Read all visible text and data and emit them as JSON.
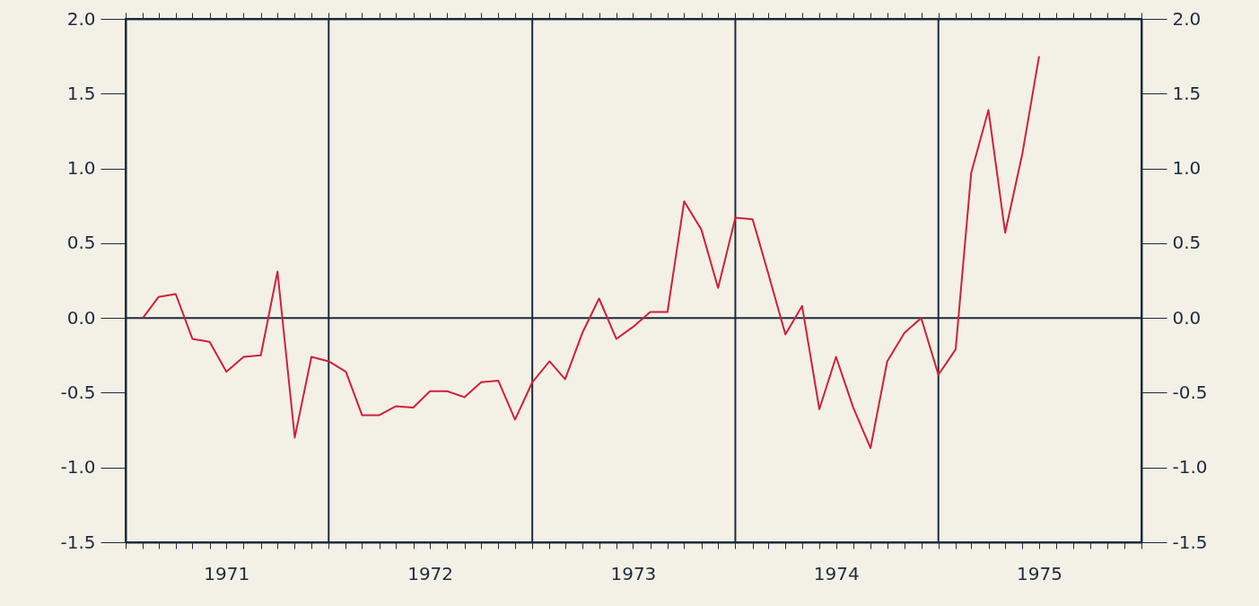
{
  "chart_data": {
    "type": "line",
    "x": [
      "1971-02",
      "1971-03",
      "1971-04",
      "1971-05",
      "1971-06",
      "1971-07",
      "1971-08",
      "1971-09",
      "1971-10",
      "1971-11",
      "1971-12",
      "1972-01",
      "1972-02",
      "1972-03",
      "1972-04",
      "1972-05",
      "1972-06",
      "1972-07",
      "1972-08",
      "1972-09",
      "1972-10",
      "1972-11",
      "1972-12",
      "1973-01",
      "1973-02",
      "1973-03",
      "1973-04",
      "1973-05",
      "1973-06",
      "1973-07",
      "1973-08",
      "1973-09",
      "1973-10",
      "1973-11",
      "1973-12",
      "1974-01",
      "1974-02",
      "1974-03",
      "1974-04",
      "1974-05",
      "1974-06",
      "1974-07",
      "1974-08",
      "1974-09",
      "1974-10",
      "1974-11",
      "1974-12",
      "1975-01",
      "1975-02",
      "1975-03",
      "1975-04",
      "1975-05",
      "1975-06",
      "1975-07"
    ],
    "series": [
      {
        "color": "#d0203a",
        "values": [
          0.0,
          0.14,
          0.16,
          -0.14,
          -0.16,
          -0.36,
          -0.26,
          -0.25,
          0.31,
          -0.8,
          -0.26,
          -0.29,
          -0.36,
          -0.65,
          -0.65,
          -0.59,
          -0.6,
          -0.49,
          -0.49,
          -0.53,
          -0.43,
          -0.42,
          -0.68,
          -0.43,
          -0.29,
          -0.41,
          -0.1,
          0.13,
          -0.14,
          -0.06,
          0.04,
          0.04,
          0.78,
          0.59,
          0.2,
          0.67,
          0.66,
          0.3,
          -0.11,
          0.08,
          -0.61,
          -0.26,
          -0.6,
          -0.87,
          -0.29,
          -0.1,
          0.0,
          -0.38,
          -0.21,
          0.97,
          1.39,
          0.57,
          1.1,
          1.75
        ]
      }
    ],
    "xlim": [
      "1971-01",
      "1976-01"
    ],
    "xticks": [
      {
        "value": "1971-01",
        "label": null
      },
      {
        "value": "1971-02",
        "label": null
      },
      {
        "value": "1971-03",
        "label": null
      },
      {
        "value": "1971-04",
        "label": null
      },
      {
        "value": "1971-05",
        "label": null
      },
      {
        "value": "1971-06",
        "label": null
      },
      {
        "value": "1971-07",
        "label": "1971"
      },
      {
        "value": "1971-08",
        "label": null
      },
      {
        "value": "1971-09",
        "label": null
      },
      {
        "value": "1971-10",
        "label": null
      },
      {
        "value": "1971-11",
        "label": null
      },
      {
        "value": "1971-12",
        "label": null
      },
      {
        "value": "1972-01",
        "label": null
      },
      {
        "value": "1972-02",
        "label": null
      },
      {
        "value": "1972-03",
        "label": null
      },
      {
        "value": "1972-04",
        "label": null
      },
      {
        "value": "1972-05",
        "label": null
      },
      {
        "value": "1972-06",
        "label": null
      },
      {
        "value": "1972-07",
        "label": "1972"
      },
      {
        "value": "1972-08",
        "label": null
      },
      {
        "value": "1972-09",
        "label": null
      },
      {
        "value": "1972-10",
        "label": null
      },
      {
        "value": "1972-11",
        "label": null
      },
      {
        "value": "1972-12",
        "label": null
      },
      {
        "value": "1973-01",
        "label": null
      },
      {
        "value": "1973-02",
        "label": null
      },
      {
        "value": "1973-03",
        "label": null
      },
      {
        "value": "1973-04",
        "label": null
      },
      {
        "value": "1973-05",
        "label": null
      },
      {
        "value": "1973-06",
        "label": null
      },
      {
        "value": "1973-07",
        "label": "1973"
      },
      {
        "value": "1973-08",
        "label": null
      },
      {
        "value": "1973-09",
        "label": null
      },
      {
        "value": "1973-10",
        "label": null
      },
      {
        "value": "1973-11",
        "label": null
      },
      {
        "value": "1973-12",
        "label": null
      },
      {
        "value": "1974-01",
        "label": null
      },
      {
        "value": "1974-02",
        "label": null
      },
      {
        "value": "1974-03",
        "label": null
      },
      {
        "value": "1974-04",
        "label": null
      },
      {
        "value": "1974-05",
        "label": null
      },
      {
        "value": "1974-06",
        "label": null
      },
      {
        "value": "1974-07",
        "label": "1974"
      },
      {
        "value": "1974-08",
        "label": null
      },
      {
        "value": "1974-09",
        "label": null
      },
      {
        "value": "1974-10",
        "label": null
      },
      {
        "value": "1974-11",
        "label": null
      },
      {
        "value": "1974-12",
        "label": null
      },
      {
        "value": "1975-01",
        "label": null
      },
      {
        "value": "1975-02",
        "label": null
      },
      {
        "value": "1975-03",
        "label": null
      },
      {
        "value": "1975-04",
        "label": null
      },
      {
        "value": "1975-05",
        "label": null
      },
      {
        "value": "1975-06",
        "label": null
      },
      {
        "value": "1975-07",
        "label": "1975"
      },
      {
        "value": "1975-08",
        "label": null
      },
      {
        "value": "1975-09",
        "label": null
      },
      {
        "value": "1975-10",
        "label": null
      },
      {
        "value": "1975-11",
        "label": null
      },
      {
        "value": "1975-12",
        "label": null
      },
      {
        "value": "1976-01",
        "label": null
      }
    ],
    "ylim": [
      -1.5,
      2.0
    ],
    "yticks": [
      {
        "value": -1.5,
        "label": "-1.5"
      },
      {
        "value": -1.0,
        "label": "-1.0"
      },
      {
        "value": -0.5,
        "label": "-0.5"
      },
      {
        "value": 0,
        "label": "0.0"
      },
      {
        "value": 0.5,
        "label": "0.5"
      },
      {
        "value": 1.0,
        "label": "1.0"
      },
      {
        "value": 1.5,
        "label": "1.5"
      },
      {
        "value": 2.0,
        "label": "2.0"
      }
    ],
    "y2lim": [
      -1.5,
      2.0
    ],
    "y2ticks": [
      {
        "value": -1.5,
        "label": "-1.5"
      },
      {
        "value": -1.0,
        "label": "-1.0"
      },
      {
        "value": -0.5,
        "label": "-0.5"
      },
      {
        "value": 0,
        "label": "0.0"
      },
      {
        "value": 0.5,
        "label": "0.5"
      },
      {
        "value": 1.0,
        "label": "1.0"
      },
      {
        "value": 1.5,
        "label": "1.5"
      },
      {
        "value": 2.0,
        "label": "2.0"
      }
    ],
    "ref_lines": [
      {
        "axis": "y",
        "value": 0,
        "color": "#1c2a3c"
      },
      {
        "axis": "x",
        "value": "1972-01",
        "color": "#1c2a3c"
      },
      {
        "axis": "x",
        "value": "1973-01",
        "color": "#1c2a3c"
      },
      {
        "axis": "x",
        "value": "1974-01",
        "color": "#1c2a3c"
      },
      {
        "axis": "x",
        "value": "1975-01",
        "color": "#1c2a3c"
      }
    ],
    "grid": false,
    "marker": "none",
    "line_style": "solid"
  }
}
